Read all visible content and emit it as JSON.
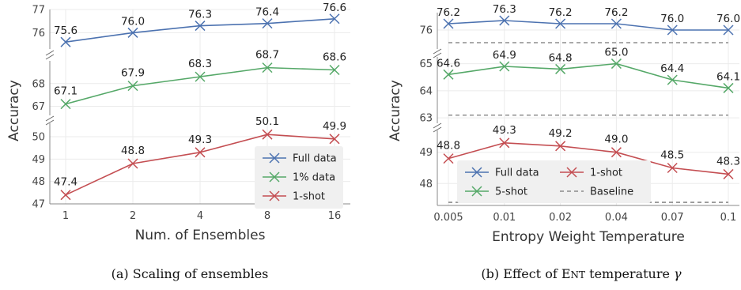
{
  "colors": {
    "blue": "#4c72b0",
    "green": "#55a868",
    "red": "#c44e52",
    "baseline": "#777777",
    "grid": "#ebebeb",
    "legend_bg": "#f0f0f0"
  },
  "chart_data": [
    {
      "type": "line",
      "caption": "(a) Scaling of ensembles",
      "xlabel": "Num. of Ensembles",
      "ylabel": "Accuracy",
      "categories": [
        "1",
        "2",
        "4",
        "8",
        "16"
      ],
      "broken_y_axis": true,
      "grid": true,
      "legend_position": "bottom-right",
      "panels": [
        {
          "ylim": [
            75.3,
            77.0
          ],
          "yticks": [
            "77",
            "76"
          ],
          "ytick_values": [
            77,
            76
          ]
        },
        {
          "ylim": [
            66.6,
            69.0
          ],
          "yticks": [
            "68",
            "67"
          ],
          "ytick_values": [
            68,
            67
          ]
        },
        {
          "ylim": [
            47.0,
            50.6
          ],
          "yticks": [
            "50",
            "49",
            "48",
            "47"
          ],
          "ytick_values": [
            50,
            49,
            48,
            47
          ]
        }
      ],
      "series": [
        {
          "name": "Full data",
          "color": "blue",
          "marker": "x",
          "panel": 0,
          "values": [
            75.6,
            76.0,
            76.3,
            76.4,
            76.6
          ],
          "labels": [
            "75.6",
            "76.0",
            "76.3",
            "76.4",
            "76.6"
          ]
        },
        {
          "name": "1% data",
          "color": "green",
          "marker": "x",
          "panel": 1,
          "values": [
            67.1,
            67.9,
            68.3,
            68.7,
            68.6
          ],
          "labels": [
            "67.1",
            "67.9",
            "68.3",
            "68.7",
            "68.6"
          ]
        },
        {
          "name": "1-shot",
          "color": "red",
          "marker": "x",
          "panel": 2,
          "values": [
            47.4,
            48.8,
            49.3,
            50.1,
            49.9
          ],
          "labels": [
            "47.4",
            "48.8",
            "49.3",
            "50.1",
            "49.9"
          ]
        }
      ],
      "legend": [
        {
          "name": "Full data",
          "color": "blue",
          "marker": "x"
        },
        {
          "name": "1% data",
          "color": "green",
          "marker": "x"
        },
        {
          "name": "1-shot",
          "color": "red",
          "marker": "x"
        }
      ]
    },
    {
      "type": "line",
      "caption_parts": [
        "(b) Effect of ",
        "E",
        "NT",
        " temperature ",
        "γ"
      ],
      "xlabel": "Entropy Weight Temperature",
      "ylabel": "Accuracy",
      "categories": [
        "0.005",
        "0.01",
        "0.02",
        "0.04",
        "0.07",
        "0.1"
      ],
      "broken_y_axis": true,
      "grid": true,
      "legend_position": "bottom-left",
      "panels": [
        {
          "ylim": [
            75.4,
            76.55
          ],
          "yticks": [
            "76"
          ],
          "ytick_values": [
            76
          ]
        },
        {
          "ylim": [
            62.8,
            65.25
          ],
          "yticks": [
            "65",
            "64",
            "63"
          ],
          "ytick_values": [
            65,
            64,
            63
          ]
        },
        {
          "ylim": [
            47.3,
            49.7
          ],
          "yticks": [
            "49",
            "48"
          ],
          "ytick_values": [
            49,
            48
          ]
        }
      ],
      "series": [
        {
          "name": "Full data",
          "color": "blue",
          "marker": "x",
          "panel": 0,
          "values": [
            76.2,
            76.3,
            76.2,
            76.2,
            76.0,
            76.0
          ],
          "labels": [
            "76.2",
            "76.3",
            "76.2",
            "76.2",
            "76.0",
            "76.0"
          ]
        },
        {
          "name": "5-shot",
          "color": "green",
          "marker": "x",
          "panel": 1,
          "values": [
            64.6,
            64.9,
            64.8,
            65.0,
            64.4,
            64.1
          ],
          "labels": [
            "64.6",
            "64.9",
            "64.8",
            "65.0",
            "64.4",
            "64.1"
          ]
        },
        {
          "name": "1-shot",
          "color": "red",
          "marker": "x",
          "panel": 2,
          "values": [
            48.8,
            49.3,
            49.2,
            49.0,
            48.5,
            48.3
          ],
          "labels": [
            "48.8",
            "49.3",
            "49.2",
            "49.0",
            "48.5",
            "48.3"
          ]
        }
      ],
      "baselines": [
        {
          "panel": 0,
          "value": 75.6
        },
        {
          "panel": 1,
          "value": 63.1
        },
        {
          "panel": 2,
          "value": 47.4
        }
      ],
      "legend": [
        {
          "name": "Full data",
          "color": "blue",
          "marker": "x"
        },
        {
          "name": "1-shot",
          "color": "red",
          "marker": "x"
        },
        {
          "name": "5-shot",
          "color": "green",
          "marker": "x"
        },
        {
          "name": "Baseline",
          "color": "baseline",
          "marker": "dash"
        }
      ]
    }
  ]
}
